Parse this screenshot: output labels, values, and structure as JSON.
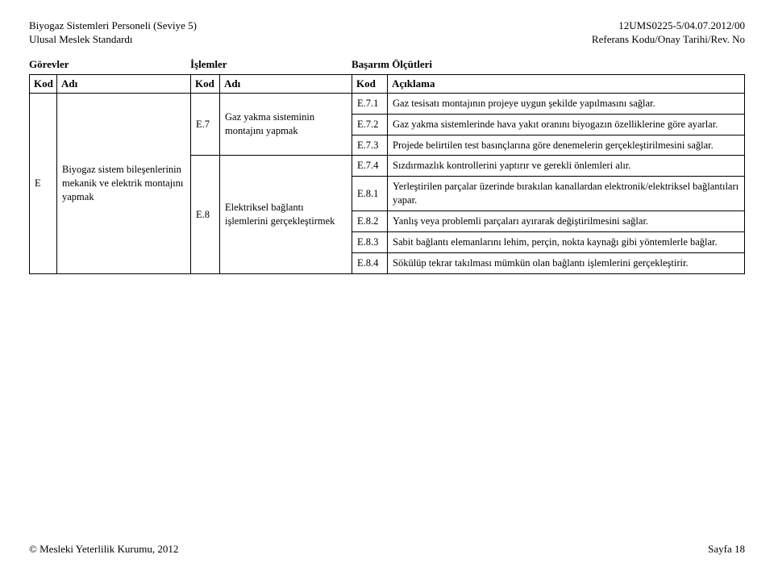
{
  "header": {
    "left_line1": "Biyogaz Sistemleri Personeli (Seviye 5)",
    "left_line2": "Ulusal Meslek Standardı",
    "right_line1": "12UMS0225-5/04.07.2012/00",
    "right_line2": "Referans Kodu/Onay Tarihi/Rev. No"
  },
  "section_labels": {
    "gorevler": "Görevler",
    "islemler": "İşlemler",
    "basarim": "Başarım Ölçütleri"
  },
  "columns": {
    "kod": "Kod",
    "adi": "Adı",
    "aciklama": "Açıklama"
  },
  "task": {
    "kod": "E",
    "adi": "Biyogaz sistem bileşenlerinin mekanik ve elektrik montajını yapmak"
  },
  "ops": [
    {
      "kod": "E.7",
      "adi": "Gaz yakma sisteminin montajını yapmak"
    },
    {
      "kod": "E.8",
      "adi": "Elektriksel bağlantı işlemlerini gerçekleştirmek"
    }
  ],
  "rows": [
    {
      "kod": "E.7.1",
      "text": "Gaz tesisatı montajının projeye uygun şekilde yapılmasını sağlar."
    },
    {
      "kod": "E.7.2",
      "text": "Gaz yakma sistemlerinde hava yakıt oranını biyogazın özelliklerine göre ayarlar."
    },
    {
      "kod": "E.7.3",
      "text": "Projede belirtilen test basınçlarına göre denemelerin gerçekleştirilmesini sağlar."
    },
    {
      "kod": "E.7.4",
      "text": "Sızdırmazlık kontrollerini yaptırır ve gerekli önlemleri alır."
    },
    {
      "kod": "E.8.1",
      "text": "Yerleştirilen parçalar üzerinde bırakılan kanallardan elektronik/elektriksel bağlantıları yapar."
    },
    {
      "kod": "E.8.2",
      "text": "Yanlış veya problemli parçaları ayırarak değiştirilmesini sağlar."
    },
    {
      "kod": "E.8.3",
      "text": "Sabit bağlantı elemanlarını lehim, perçin, nokta kaynağı gibi yöntemlerle bağlar."
    },
    {
      "kod": "E.8.4",
      "text": "Sökülüp tekrar takılması mümkün olan bağlantı işlemlerini gerçekleştirir."
    }
  ],
  "footer": {
    "left": "© Mesleki Yeterlilik Kurumu, 2012",
    "right": "Sayfa 18"
  }
}
